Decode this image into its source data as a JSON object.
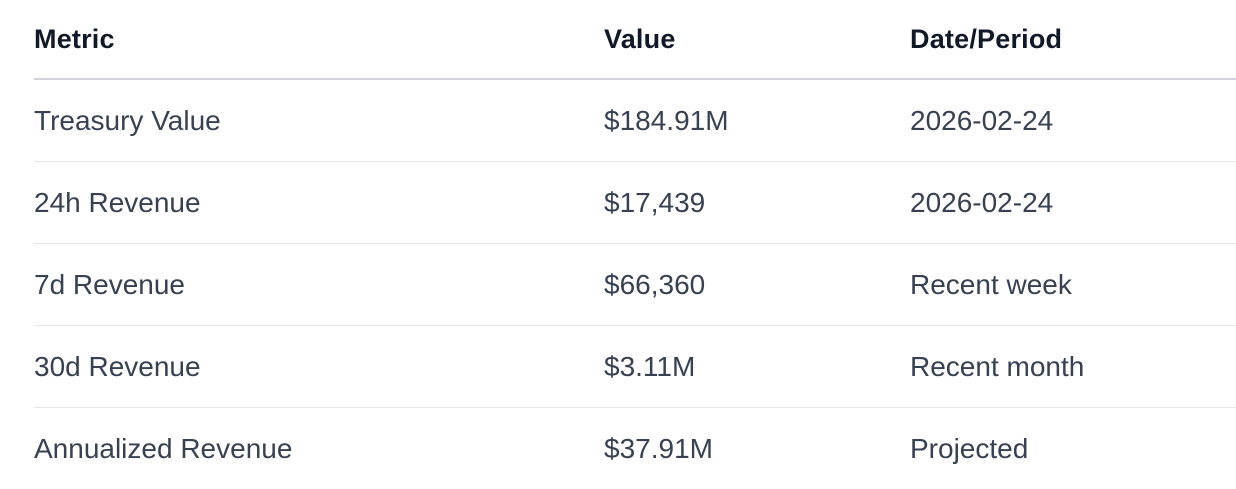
{
  "table": {
    "headers": [
      "Metric",
      "Value",
      "Date/Period"
    ],
    "rows": [
      [
        "Treasury Value",
        "$184.91M",
        "2026-02-24"
      ],
      [
        "24h Revenue",
        "$17,439",
        "2026-02-24"
      ],
      [
        "7d Revenue",
        "$66,360",
        "Recent week"
      ],
      [
        "30d Revenue",
        "$3.11M",
        "Recent month"
      ],
      [
        "Annualized Revenue",
        "$37.91M",
        "Projected"
      ]
    ]
  }
}
